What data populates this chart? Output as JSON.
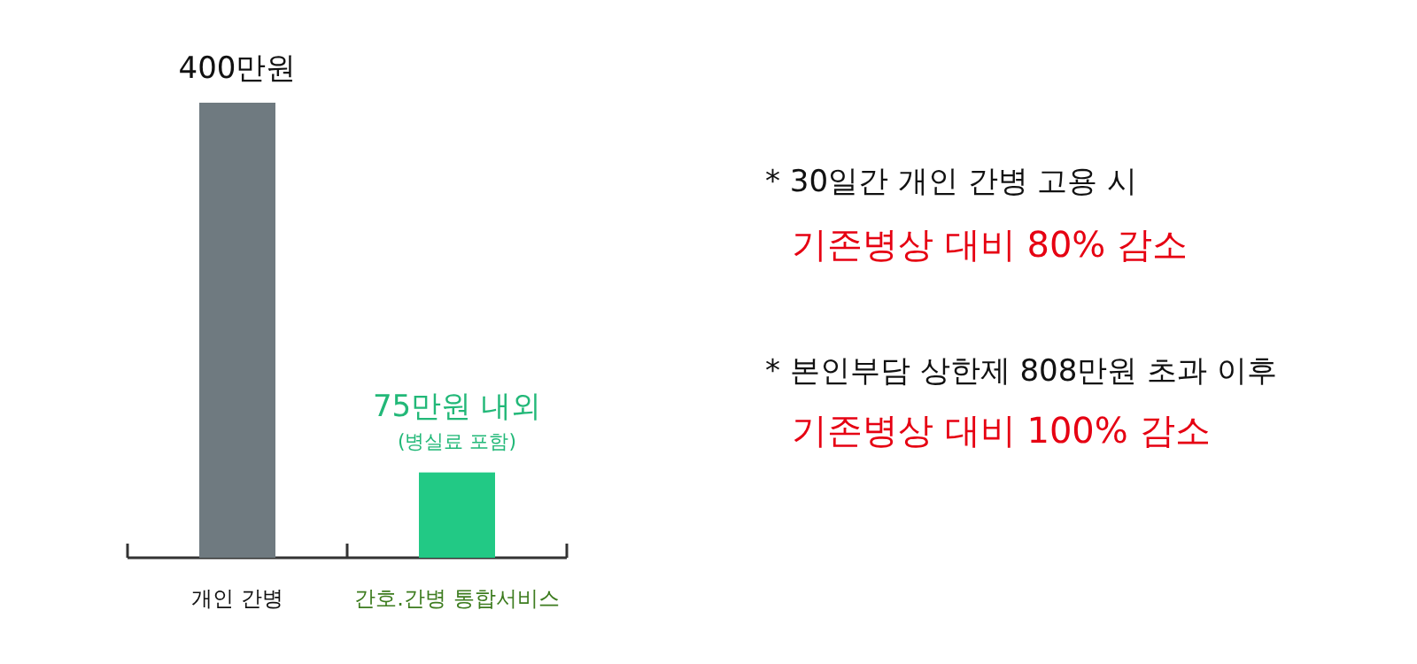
{
  "chart_data": {
    "type": "bar",
    "categories": [
      "개인 간병",
      "간호.간병 통합서비스"
    ],
    "values": [
      400,
      75
    ],
    "colors": [
      "#6f7a80",
      "#22c985"
    ],
    "value_labels": [
      "400만원",
      "75만원 내외"
    ],
    "annotations": [
      "(병실료 포함)",
      "* 30일간 개인 간병 고용 시",
      "기존병상 대비 80% 감소",
      "* 본인부담 상한제  808만원 초과 이후",
      "기존병상 대비 100% 감소"
    ]
  }
}
